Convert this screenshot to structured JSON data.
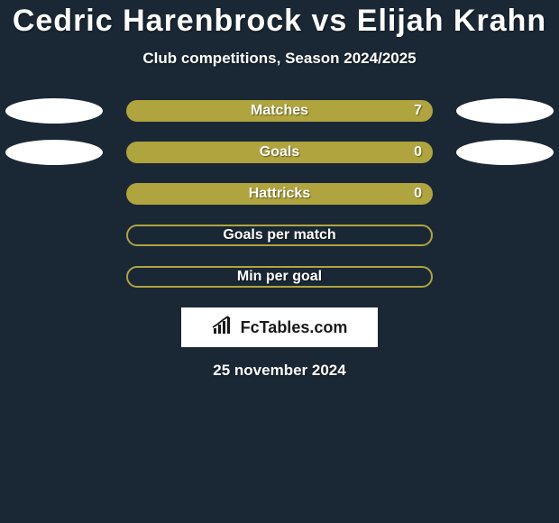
{
  "background_color": "#1a2836",
  "title": "Cedric Harenbrock vs Elijah Krahn",
  "title_color": "#ffffff",
  "title_fontsize": 34,
  "subtitle": "Club competitions, Season 2024/2025",
  "subtitle_color": "#ffffff",
  "subtitle_fontsize": 17,
  "bar_fill_color": "#afa43d",
  "bar_outline_color": "#afa43d",
  "bar_radius": 12,
  "ellipse_color": "#ffffff",
  "label_color": "#ffffff",
  "label_fontsize": 16,
  "rows": [
    {
      "label": "Matches",
      "value": "7",
      "filled": true,
      "show_ellipses": true,
      "show_value": true
    },
    {
      "label": "Goals",
      "value": "0",
      "filled": true,
      "show_ellipses": true,
      "show_value": true
    },
    {
      "label": "Hattricks",
      "value": "0",
      "filled": true,
      "show_ellipses": false,
      "show_value": true
    },
    {
      "label": "Goals per match",
      "value": "",
      "filled": false,
      "show_ellipses": false,
      "show_value": false
    },
    {
      "label": "Min per goal",
      "value": "",
      "filled": false,
      "show_ellipses": false,
      "show_value": false
    }
  ],
  "brand": {
    "text": "FcTables.com",
    "box_bg": "#ffffff",
    "text_color": "#1a1a1a",
    "icon_color": "#1a1a1a"
  },
  "date": "25 november 2024",
  "date_color": "#ffffff"
}
